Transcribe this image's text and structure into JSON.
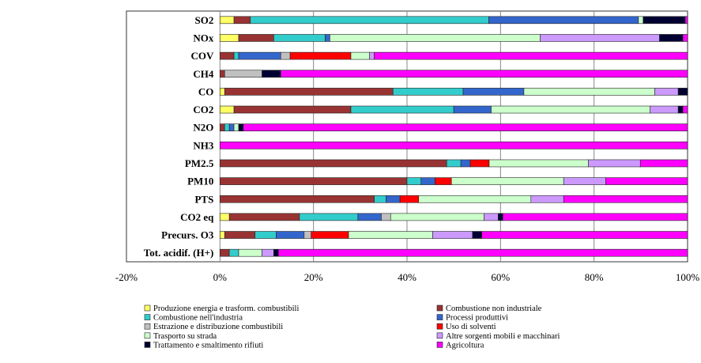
{
  "chart_data": {
    "type": "bar",
    "orientation": "horizontal",
    "stacked": "percent",
    "categories": [
      "SO2",
      "NOx",
      "COV",
      "CH4",
      "CO",
      "CO2",
      "N2O",
      "NH3",
      "PM2.5",
      "PM10",
      "PTS",
      "CO2 eq",
      "Precurs. O3",
      "Tot. acidif. (H+)"
    ],
    "x_ticks": [
      "-20%",
      "0%",
      "20%",
      "40%",
      "60%",
      "80%",
      "100%"
    ],
    "xlim": [
      -20,
      100
    ],
    "grid": "vertical",
    "legend_position": "bottom",
    "series": [
      {
        "name": "Produzione energia e trasform. combustibili",
        "color": "#FFFF66",
        "values": [
          3,
          4,
          0,
          0,
          1,
          3,
          0,
          0,
          0,
          0,
          0,
          2,
          1,
          0
        ]
      },
      {
        "name": "Combustione non industriale",
        "color": "#993333",
        "values": [
          3.5,
          7.5,
          3,
          1,
          36,
          25,
          1,
          0,
          48,
          40,
          33,
          15,
          6.5,
          2
        ]
      },
      {
        "name": "Combustione nell'industria",
        "color": "#33CCCC",
        "values": [
          51,
          11,
          1,
          0,
          15,
          22,
          1,
          0,
          3,
          3,
          2.5,
          12.5,
          4.5,
          2
        ]
      },
      {
        "name": "Processi produttivi",
        "color": "#3366CC",
        "values": [
          32,
          1,
          9,
          0,
          13,
          8,
          1,
          0,
          2,
          3,
          3,
          5,
          6,
          0
        ]
      },
      {
        "name": "Estrazione e distribuzione combustibili",
        "color": "#C0C0C0",
        "values": [
          0,
          0,
          2,
          8,
          0,
          0,
          0,
          0,
          0,
          0,
          0,
          2,
          1.5,
          0
        ]
      },
      {
        "name": "Uso di solventi",
        "color": "#FF0000",
        "values": [
          0,
          0,
          13,
          0,
          0,
          0,
          0,
          0,
          4,
          3.5,
          4,
          0,
          8,
          0
        ]
      },
      {
        "name": "Trasporto su strada",
        "color": "#CCFFCC",
        "values": [
          1,
          45,
          4,
          0,
          28,
          34,
          1,
          0,
          21,
          24,
          24,
          20,
          18,
          5
        ]
      },
      {
        "name": "Altre sorgenti mobili e macchinari",
        "color": "#CC99FF",
        "values": [
          0,
          25.5,
          1,
          0,
          5,
          6,
          0,
          0,
          11,
          9,
          7,
          3,
          8.5,
          2.5
        ]
      },
      {
        "name": "Trattamento e smaltimento rifiuti",
        "color": "#000033",
        "values": [
          9,
          5,
          0,
          4,
          2,
          1,
          1,
          0,
          0,
          0,
          0,
          1,
          2,
          1
        ]
      },
      {
        "name": "Agricoltura",
        "color": "#FF00FF",
        "values": [
          0.5,
          1,
          67,
          87,
          0,
          1,
          95,
          100,
          10,
          17.5,
          26.5,
          39.5,
          44,
          87.5
        ]
      }
    ]
  }
}
